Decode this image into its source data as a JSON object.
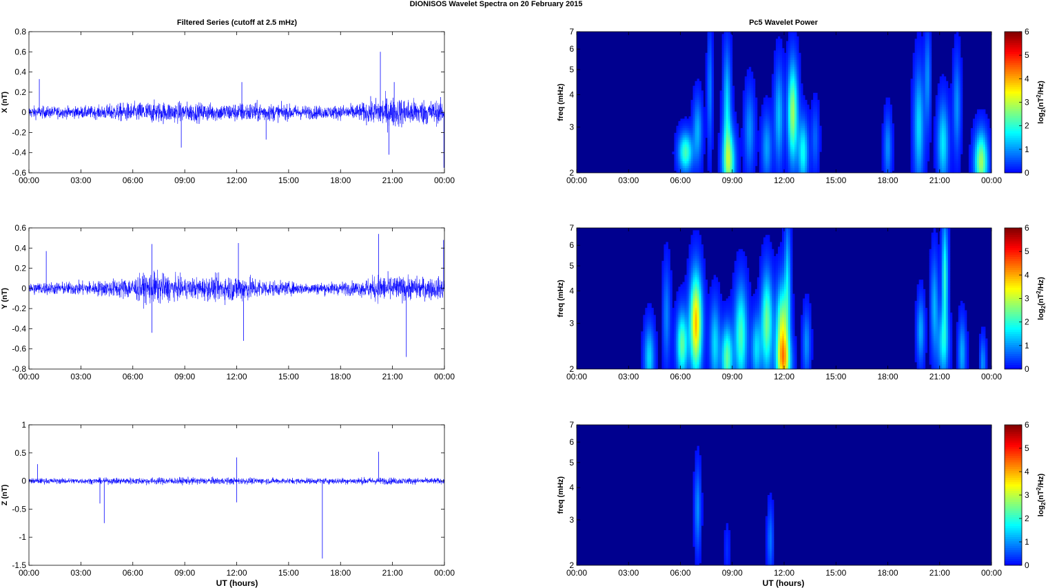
{
  "figure": {
    "title": "DIONISOS Wavelet Spectra on 20 February  2015",
    "left_title": "Filtered Series (cutoff at 2.5 mHz)",
    "right_title": "Pc5 Wavelet Power",
    "xlabel": "UT (hours)"
  },
  "colors": {
    "trace": "#0000ff",
    "background": "#00008f",
    "colormap": "jet"
  },
  "chart_data": [
    {
      "type": "line",
      "id": "x-series",
      "ylabel": "X (nT)",
      "x_range_hours": [
        0,
        24
      ],
      "xticks": [
        "00:00",
        "03:00",
        "06:00",
        "09:00",
        "12:00",
        "15:00",
        "18:00",
        "21:00",
        "00:00"
      ],
      "ylim": [
        -0.6,
        0.8
      ],
      "yticks": [
        "-0.6",
        "-0.4",
        "-0.2",
        "0",
        "0.2",
        "0.4",
        "0.6",
        "0.8"
      ],
      "ytick_values": [
        -0.6,
        -0.4,
        -0.2,
        0,
        0.2,
        0.4,
        0.6,
        0.8
      ],
      "envelope": [
        {
          "t": 0,
          "a": 0.1
        },
        {
          "t": 2,
          "a": 0.09
        },
        {
          "t": 4,
          "a": 0.1
        },
        {
          "t": 5,
          "a": 0.14
        },
        {
          "t": 7,
          "a": 0.17
        },
        {
          "t": 9,
          "a": 0.16
        },
        {
          "t": 11,
          "a": 0.14
        },
        {
          "t": 13,
          "a": 0.16
        },
        {
          "t": 15,
          "a": 0.12
        },
        {
          "t": 17,
          "a": 0.1
        },
        {
          "t": 19,
          "a": 0.13
        },
        {
          "t": 20.5,
          "a": 0.25
        },
        {
          "t": 22,
          "a": 0.22
        },
        {
          "t": 24,
          "a": 0.18
        }
      ],
      "spikes": [
        {
          "t": 20.3,
          "v": 0.6
        },
        {
          "t": 20.8,
          "v": -0.42
        },
        {
          "t": 21.1,
          "v": 0.3
        },
        {
          "t": 23.97,
          "v": -0.55
        },
        {
          "t": 8.8,
          "v": -0.35
        },
        {
          "t": 12.3,
          "v": 0.3
        },
        {
          "t": 13.7,
          "v": -0.27
        },
        {
          "t": 0.6,
          "v": 0.33
        }
      ]
    },
    {
      "type": "line",
      "id": "y-series",
      "ylabel": "Y (nT)",
      "x_range_hours": [
        0,
        24
      ],
      "xticks": [
        "00:00",
        "03:00",
        "06:00",
        "09:00",
        "12:00",
        "15:00",
        "18:00",
        "21:00",
        "00:00"
      ],
      "ylim": [
        -0.8,
        0.6
      ],
      "yticks": [
        "-0.8",
        "-0.6",
        "-0.4",
        "-0.2",
        "0",
        "0.2",
        "0.4",
        "0.6"
      ],
      "ytick_values": [
        -0.8,
        -0.6,
        -0.4,
        -0.2,
        0,
        0.2,
        0.4,
        0.6
      ],
      "envelope": [
        {
          "t": 0,
          "a": 0.1
        },
        {
          "t": 2,
          "a": 0.1
        },
        {
          "t": 4,
          "a": 0.12
        },
        {
          "t": 6,
          "a": 0.18
        },
        {
          "t": 7.2,
          "a": 0.26
        },
        {
          "t": 9,
          "a": 0.16
        },
        {
          "t": 11,
          "a": 0.2
        },
        {
          "t": 12.3,
          "a": 0.22
        },
        {
          "t": 14,
          "a": 0.12
        },
        {
          "t": 16,
          "a": 0.09
        },
        {
          "t": 19,
          "a": 0.11
        },
        {
          "t": 20.2,
          "a": 0.22
        },
        {
          "t": 22,
          "a": 0.18
        },
        {
          "t": 24,
          "a": 0.17
        }
      ],
      "spikes": [
        {
          "t": 7.1,
          "v": 0.44
        },
        {
          "t": 7.1,
          "v": -0.44
        },
        {
          "t": 12.4,
          "v": -0.52
        },
        {
          "t": 12.1,
          "v": 0.45
        },
        {
          "t": 20.2,
          "v": 0.54
        },
        {
          "t": 21.8,
          "v": -0.68
        },
        {
          "t": 23.95,
          "v": 0.48
        },
        {
          "t": 1.0,
          "v": 0.37
        }
      ]
    },
    {
      "type": "line",
      "id": "z-series",
      "ylabel": "Z (nT)",
      "x_range_hours": [
        0,
        24
      ],
      "xticks": [
        "00:00",
        "03:00",
        "06:00",
        "09:00",
        "12:00",
        "15:00",
        "18:00",
        "21:00",
        "00:00"
      ],
      "ylim": [
        -1.5,
        1
      ],
      "yticks": [
        "-1.5",
        "-1",
        "-0.5",
        "0",
        "0.5",
        "1"
      ],
      "ytick_values": [
        -1.5,
        -1,
        -0.5,
        0,
        0.5,
        1
      ],
      "envelope": [
        {
          "t": 0,
          "a": 0.08
        },
        {
          "t": 4,
          "a": 0.08
        },
        {
          "t": 6,
          "a": 0.1
        },
        {
          "t": 10,
          "a": 0.1
        },
        {
          "t": 13,
          "a": 0.09
        },
        {
          "t": 16,
          "a": 0.08
        },
        {
          "t": 20,
          "a": 0.1
        },
        {
          "t": 22,
          "a": 0.09
        },
        {
          "t": 24,
          "a": 0.08
        }
      ],
      "spikes": [
        {
          "t": 16.95,
          "v": -1.38
        },
        {
          "t": 4.35,
          "v": -0.75
        },
        {
          "t": 4.1,
          "v": -0.4
        },
        {
          "t": 12.0,
          "v": 0.42
        },
        {
          "t": 20.2,
          "v": 0.52
        },
        {
          "t": 12.0,
          "v": -0.38
        },
        {
          "t": 0.5,
          "v": 0.3
        }
      ]
    },
    {
      "type": "heatmap",
      "id": "x-power",
      "ylabel": "freq (mHz)",
      "yscale": "log",
      "ylim": [
        2,
        7
      ],
      "yticks": [
        "2",
        "3",
        "4",
        "5",
        "6",
        "7"
      ],
      "ytick_values": [
        2,
        3,
        4,
        5,
        6,
        7
      ],
      "xticks": [
        "00:00",
        "03:00",
        "06:00",
        "09:00",
        "12:00",
        "15:00",
        "18:00",
        "21:00",
        "00:00"
      ],
      "colorbar": {
        "label": "log2(nT^2/Hz)",
        "range": [
          0,
          6
        ],
        "ticks": [
          "0",
          "1",
          "2",
          "3",
          "4",
          "5",
          "6"
        ]
      },
      "blobs": [
        {
          "t": 6.3,
          "f": 2.4,
          "v": 2.2,
          "wt": 0.28,
          "wf": 0.12
        },
        {
          "t": 7.0,
          "f": 2.9,
          "v": 1.2,
          "wt": 0.18,
          "wf": 0.2
        },
        {
          "t": 7.7,
          "f": 4.2,
          "v": 0.9,
          "wt": 0.1,
          "wf": 0.35
        },
        {
          "t": 8.8,
          "f": 2.2,
          "v": 2.6,
          "wt": 0.25,
          "wf": 0.2
        },
        {
          "t": 8.7,
          "f": 3.6,
          "v": 1.5,
          "wt": 0.15,
          "wf": 0.35
        },
        {
          "t": 10.0,
          "f": 2.9,
          "v": 1.0,
          "wt": 0.2,
          "wf": 0.25
        },
        {
          "t": 11.0,
          "f": 2.5,
          "v": 1.1,
          "wt": 0.2,
          "wf": 0.2
        },
        {
          "t": 11.7,
          "f": 3.3,
          "v": 1.3,
          "wt": 0.18,
          "wf": 0.3
        },
        {
          "t": 12.5,
          "f": 3.4,
          "v": 2.8,
          "wt": 0.2,
          "wf": 0.3
        },
        {
          "t": 13.1,
          "f": 2.4,
          "v": 1.8,
          "wt": 0.2,
          "wf": 0.2
        },
        {
          "t": 13.8,
          "f": 2.7,
          "v": 0.7,
          "wt": 0.15,
          "wf": 0.2
        },
        {
          "t": 18.0,
          "f": 2.5,
          "v": 1.0,
          "wt": 0.15,
          "wf": 0.2
        },
        {
          "t": 19.8,
          "f": 3.0,
          "v": 1.5,
          "wt": 0.2,
          "wf": 0.35
        },
        {
          "t": 20.3,
          "f": 4.6,
          "v": 1.0,
          "wt": 0.12,
          "wf": 0.3
        },
        {
          "t": 21.2,
          "f": 2.6,
          "v": 1.6,
          "wt": 0.22,
          "wf": 0.25
        },
        {
          "t": 22.0,
          "f": 3.6,
          "v": 1.0,
          "wt": 0.15,
          "wf": 0.3
        },
        {
          "t": 23.4,
          "f": 2.2,
          "v": 2.8,
          "wt": 0.26,
          "wf": 0.18
        }
      ]
    },
    {
      "type": "heatmap",
      "id": "y-power",
      "ylabel": "freq (mHz)",
      "yscale": "log",
      "ylim": [
        2,
        7
      ],
      "yticks": [
        "2",
        "3",
        "4",
        "5",
        "6",
        "7"
      ],
      "ytick_values": [
        2,
        3,
        4,
        5,
        6,
        7
      ],
      "xticks": [
        "00:00",
        "03:00",
        "06:00",
        "09:00",
        "12:00",
        "15:00",
        "18:00",
        "21:00",
        "00:00"
      ],
      "colorbar": {
        "label": "log2(nT^2/Hz)",
        "range": [
          0,
          6
        ],
        "ticks": [
          "0",
          "1",
          "2",
          "3",
          "4",
          "5",
          "6"
        ]
      },
      "blobs": [
        {
          "t": 4.2,
          "f": 2.2,
          "v": 1.5,
          "wt": 0.2,
          "wf": 0.2
        },
        {
          "t": 5.2,
          "f": 3.2,
          "v": 0.9,
          "wt": 0.15,
          "wf": 0.3
        },
        {
          "t": 6.1,
          "f": 2.5,
          "v": 2.4,
          "wt": 0.22,
          "wf": 0.2
        },
        {
          "t": 6.9,
          "f": 3.0,
          "v": 3.9,
          "wt": 0.24,
          "wf": 0.3
        },
        {
          "t": 8.0,
          "f": 2.5,
          "v": 1.5,
          "wt": 0.2,
          "wf": 0.25
        },
        {
          "t": 8.7,
          "f": 2.2,
          "v": 2.4,
          "wt": 0.22,
          "wf": 0.2
        },
        {
          "t": 9.5,
          "f": 2.7,
          "v": 2.2,
          "wt": 0.25,
          "wf": 0.3
        },
        {
          "t": 10.4,
          "f": 2.4,
          "v": 1.5,
          "wt": 0.2,
          "wf": 0.2
        },
        {
          "t": 11.0,
          "f": 3.0,
          "v": 2.5,
          "wt": 0.22,
          "wf": 0.3
        },
        {
          "t": 11.9,
          "f": 2.7,
          "v": 3.2,
          "wt": 0.25,
          "wf": 0.3
        },
        {
          "t": 12.0,
          "f": 2.1,
          "v": 2.0,
          "wt": 0.3,
          "wf": 0.15
        },
        {
          "t": 12.2,
          "f": 4.5,
          "v": 1.3,
          "wt": 0.12,
          "wf": 0.35
        },
        {
          "t": 13.3,
          "f": 2.5,
          "v": 1.0,
          "wt": 0.15,
          "wf": 0.2
        },
        {
          "t": 19.9,
          "f": 2.8,
          "v": 1.2,
          "wt": 0.15,
          "wf": 0.2
        },
        {
          "t": 20.7,
          "f": 3.5,
          "v": 1.2,
          "wt": 0.15,
          "wf": 0.3
        },
        {
          "t": 21.2,
          "f": 2.5,
          "v": 1.5,
          "wt": 0.22,
          "wf": 0.2
        },
        {
          "t": 21.3,
          "f": 4.5,
          "v": 2.0,
          "wt": 0.12,
          "wf": 0.35
        },
        {
          "t": 22.3,
          "f": 2.3,
          "v": 1.2,
          "wt": 0.15,
          "wf": 0.2
        },
        {
          "t": 23.5,
          "f": 2.1,
          "v": 1.0,
          "wt": 0.12,
          "wf": 0.15
        }
      ]
    },
    {
      "type": "heatmap",
      "id": "z-power",
      "ylabel": "freq (mHz)",
      "yscale": "log",
      "ylim": [
        2,
        7
      ],
      "yticks": [
        "2",
        "3",
        "4",
        "5",
        "6",
        "7"
      ],
      "ytick_values": [
        2,
        3,
        4,
        5,
        6,
        7
      ],
      "xticks": [
        "00:00",
        "03:00",
        "06:00",
        "09:00",
        "12:00",
        "15:00",
        "18:00",
        "21:00",
        "00:00"
      ],
      "colorbar": {
        "label": "log2(nT^2/Hz)",
        "range": [
          0,
          6
        ],
        "ticks": [
          "0",
          "1",
          "2",
          "3",
          "4",
          "5",
          "6"
        ]
      },
      "blobs": [
        {
          "t": 7.0,
          "f": 3.3,
          "v": 1.0,
          "wt": 0.12,
          "wf": 0.25
        },
        {
          "t": 11.2,
          "f": 2.5,
          "v": 0.8,
          "wt": 0.12,
          "wf": 0.2
        },
        {
          "t": 8.7,
          "f": 2.3,
          "v": 0.3,
          "wt": 0.1,
          "wf": 0.15
        }
      ]
    }
  ],
  "colorbar_label": {
    "prefix": "log",
    "sub": "2",
    "mid": "(nT",
    "sup": "2",
    "suffix": "/Hz)"
  }
}
